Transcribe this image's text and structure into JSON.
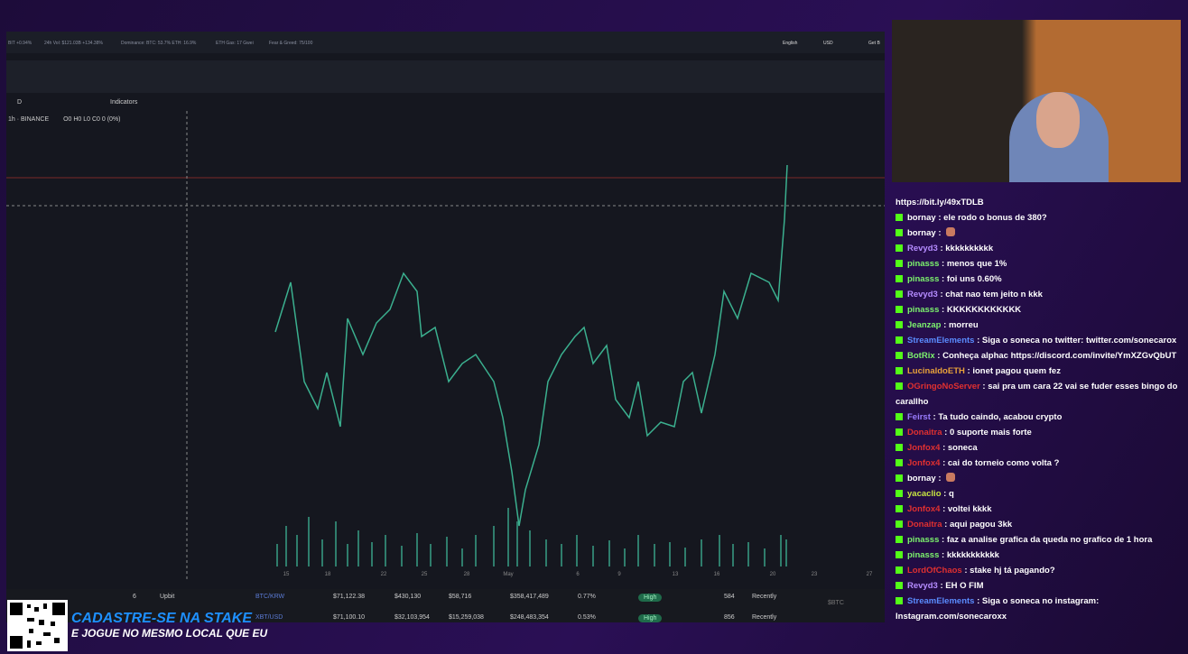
{
  "top_bar": {
    "items": [
      "BIT +0.94%",
      "24h Vol: $121.03B +134.38%",
      "Dominance: BTC: 53.7% ETH: 16.9%",
      "ETH Gas: 17 Gwei",
      "Fear & Greed: 75/100"
    ],
    "language": "English",
    "currency": "USD",
    "button": "Get B"
  },
  "toolbar": {
    "interval": "D",
    "indicators": "Indicators"
  },
  "chart_header": {
    "symbol": "1h · BINANCE",
    "ohlc": "O0 H0 L0 C0 0 (0%)"
  },
  "x_axis_labels": [
    "15",
    "18",
    "22",
    "25",
    "28",
    "May",
    "6",
    "9",
    "13",
    "16",
    "20",
    "23",
    "27"
  ],
  "table_rows": [
    {
      "rank": "6",
      "exchange": "Upbit",
      "pair": "BTC/KRW",
      "price": "$71,122.38",
      "depth_plus": "$430,130",
      "depth_minus": "$58,716",
      "volume": "$358,417,489",
      "share": "0.77%",
      "confidence": "High",
      "markets": "584",
      "updated": "Recently"
    },
    {
      "pair": "XBT/USD",
      "price": "$71,100.10",
      "depth_plus": "$32,103,954",
      "depth_minus": "$15,259,038",
      "volume": "$248,483,354",
      "share": "0.53%",
      "confidence": "High",
      "markets": "856",
      "updated": "Recently"
    }
  ],
  "ticker_badge": "$BTC",
  "chat": {
    "link": "https://bit.ly/49xTDLB",
    "messages": [
      {
        "user": "bornay",
        "color": "#ffffff",
        "text": "ele rodo o bonus de 380?"
      },
      {
        "user": "bornay",
        "color": "#ffffff"
      },
      {
        "user": "Revyd3",
        "color": "#b58cff",
        "text": "kkkkkkkkkk"
      },
      {
        "user": "pinasss",
        "color": "#7cf26d",
        "text": "menos que 1%"
      },
      {
        "user": "pinasss",
        "color": "#7cf26d",
        "text": "foi uns 0.60%"
      },
      {
        "user": "Revyd3",
        "color": "#b58cff",
        "text": "chat nao tem jeito n kkk"
      },
      {
        "user": "pinasss",
        "color": "#7cf26d",
        "text": "KKKKKKKKKKKK"
      },
      {
        "user": "Jeanzap",
        "color": "#7cf26d",
        "text": "morreu"
      },
      {
        "user": "StreamElements",
        "color": "#5a8cff",
        "text": "Siga o soneca no twitter: twitter.com/sonecarox"
      },
      {
        "user": "BotRix",
        "color": "#7cf26d",
        "text": "Conheça alphac https://discord.com/invite/YmXZGvQbUT"
      },
      {
        "user": "LucinaldoETH",
        "color": "#e8a13a",
        "text": "ionet pagou quem fez"
      },
      {
        "user": "OGringoNoServer",
        "color": "#e03030",
        "text": "sai pra um cara 22 vai se fuder esses bingo do carallho"
      },
      {
        "user": "Feirst",
        "color": "#9a7cff",
        "text": "Ta tudo caindo, acabou crypto"
      },
      {
        "user": "Donaitra",
        "color": "#e03030",
        "text": "0 suporte mais forte"
      },
      {
        "user": "Jonfox4",
        "color": "#e03030",
        "text": "soneca"
      },
      {
        "user": "Jonfox4",
        "color": "#e03030",
        "text": "cai do torneio como volta ?"
      },
      {
        "user": "bornay",
        "color": "#ffffff"
      },
      {
        "user": "yacaclio",
        "color": "#c8e640",
        "text": "q"
      },
      {
        "user": "Jonfox4",
        "color": "#e03030",
        "text": "voltei kkkk"
      },
      {
        "user": "Donaitra",
        "color": "#e03030",
        "text": "aqui pagou 3kk"
      },
      {
        "user": "pinasss",
        "color": "#7cf26d",
        "text": "faz a analise grafica da queda no grafico de 1 hora"
      },
      {
        "user": "pinasss",
        "color": "#7cf26d",
        "text": "kkkkkkkkkkk"
      },
      {
        "user": "LordOfChaos",
        "color": "#e03030",
        "text": "stake hj tá pagando?"
      },
      {
        "user": "Revyd3",
        "color": "#b58cff",
        "text": "EH O FIM"
      },
      {
        "user": "StreamElements",
        "color": "#5a8cff",
        "text": "Siga o soneca no instagram: Instagram.com/sonecaroxx"
      }
    ]
  },
  "banner": {
    "line1": "CADASTRE-SE NA STAKE",
    "line2": "E JOGUE NO MESMO LOCAL QUE EU"
  }
}
